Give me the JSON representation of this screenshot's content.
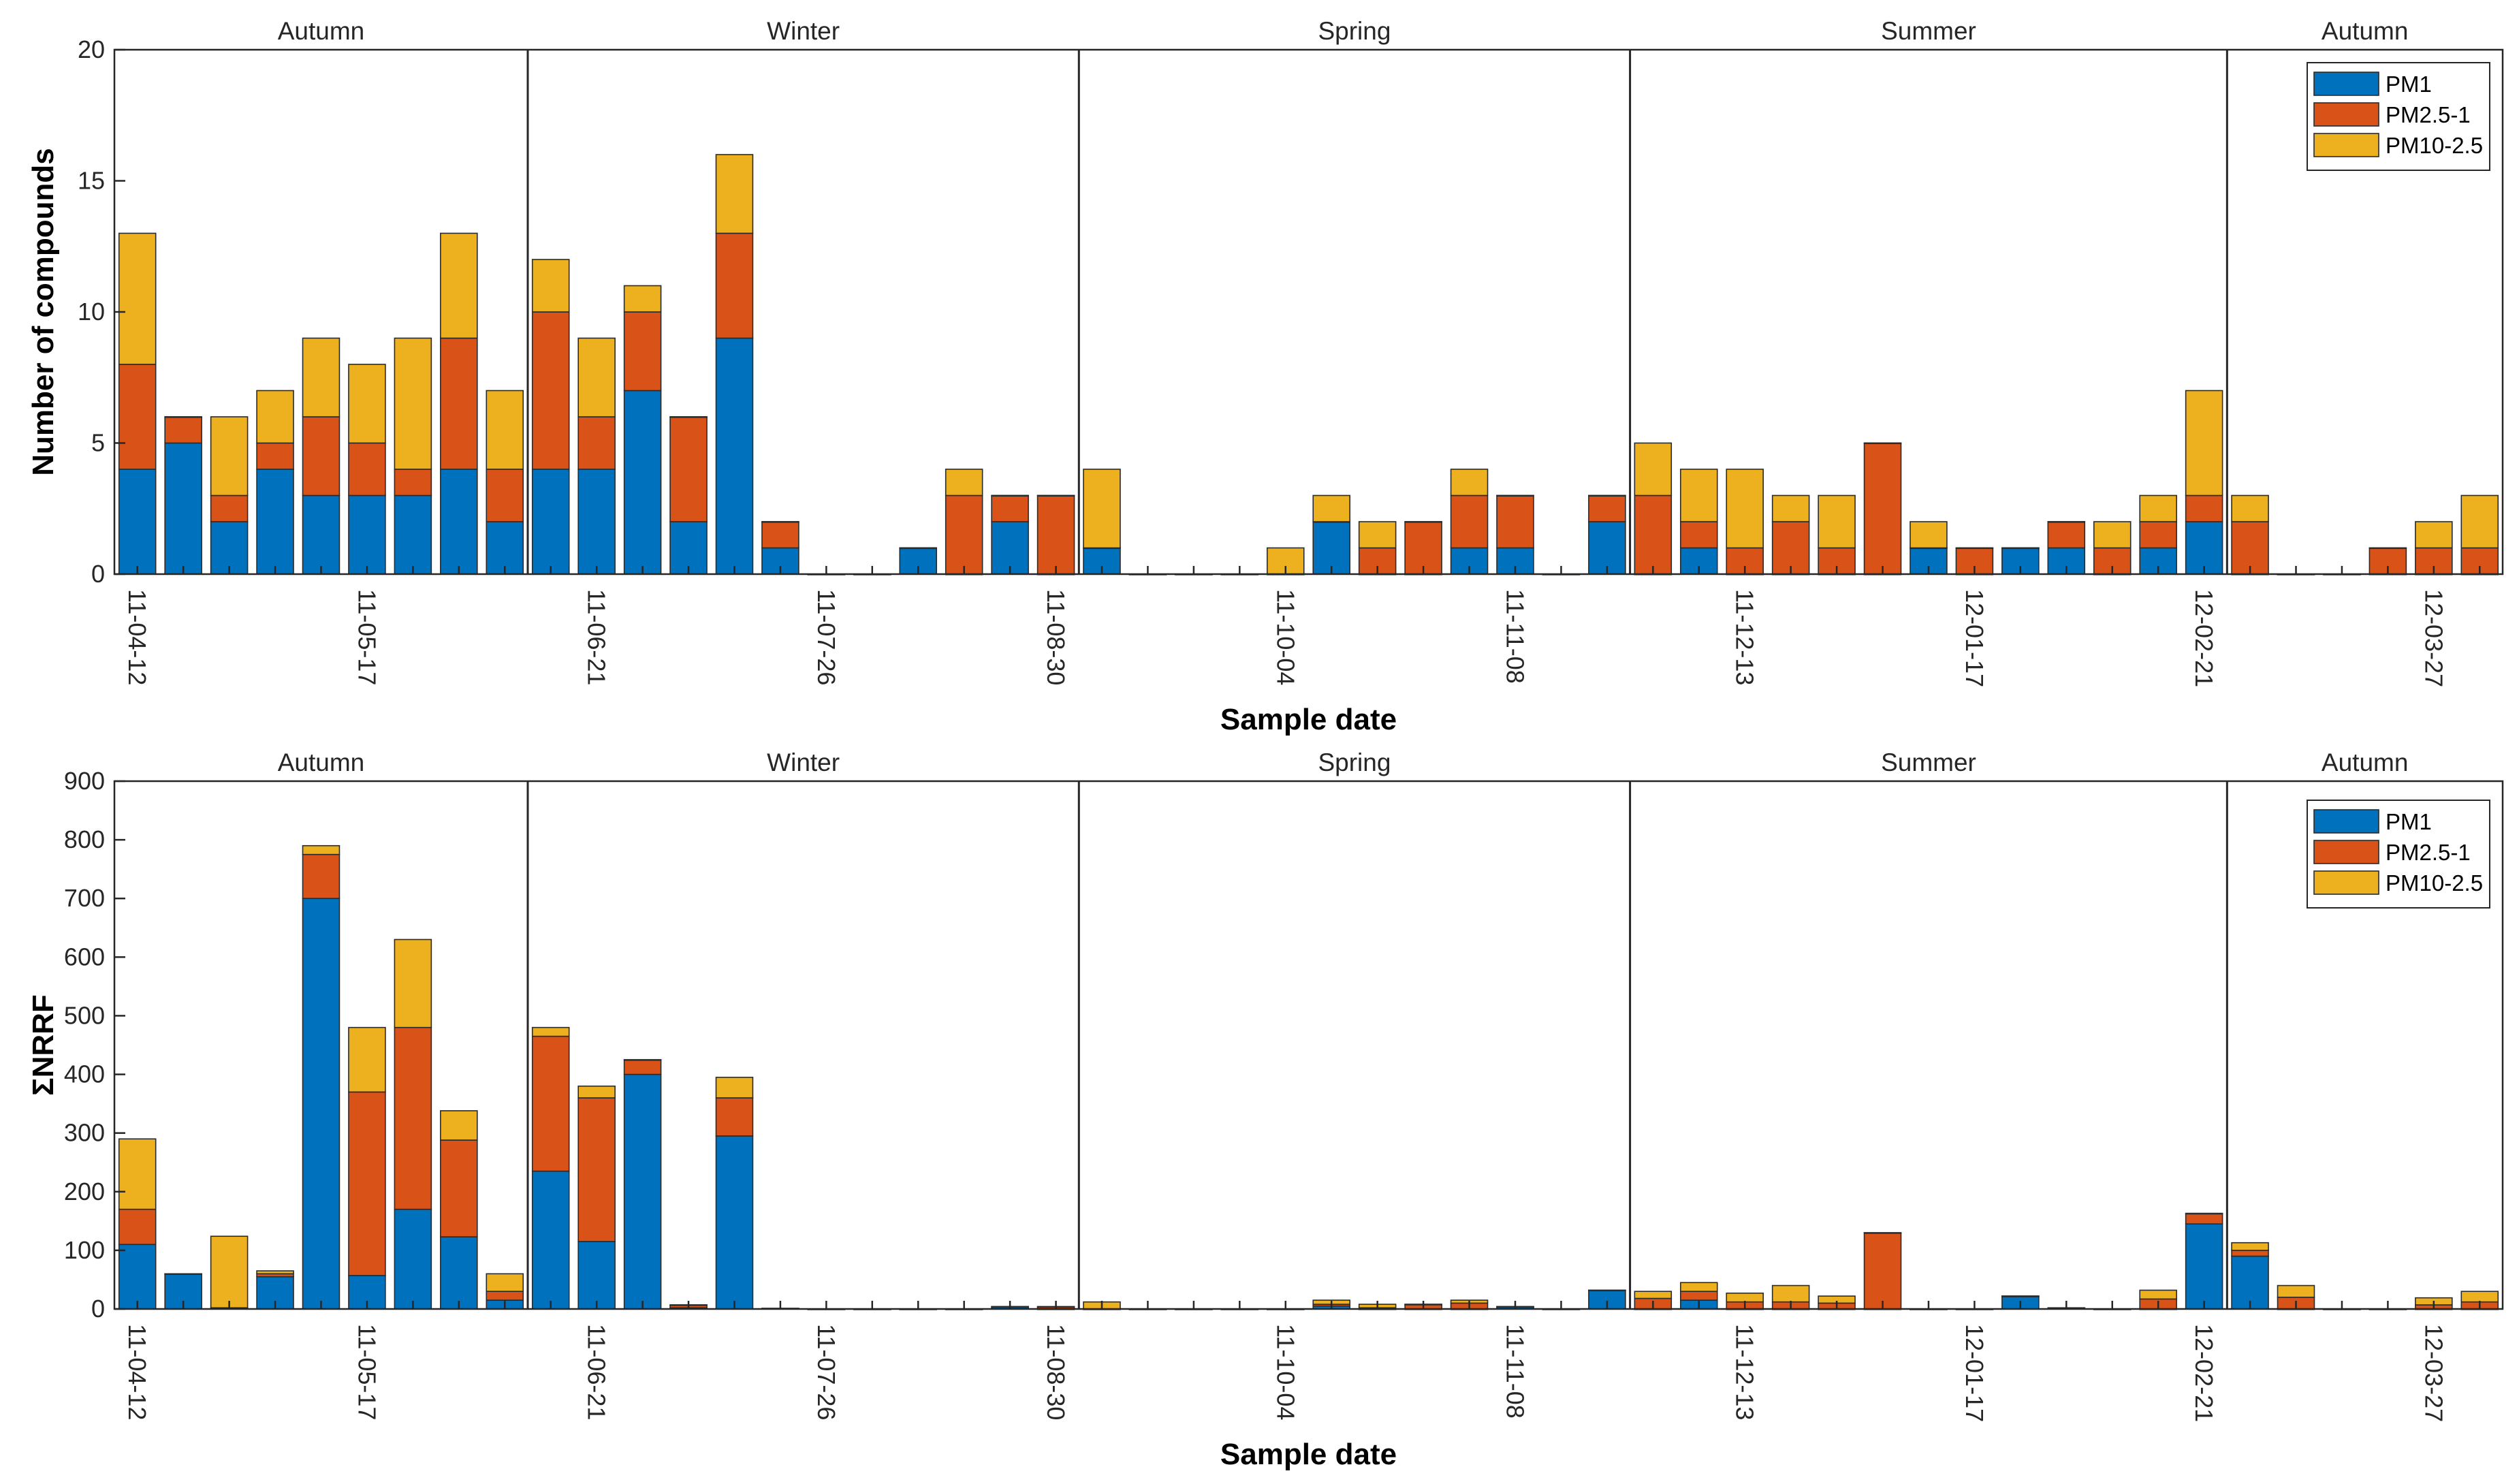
{
  "chart_data": [
    {
      "type": "bar",
      "stacked": true,
      "ylabel": "Number of compounds",
      "xlabel": "Sample date",
      "ylim": [
        0,
        20
      ],
      "yticks": [
        0,
        5,
        10,
        15,
        20
      ],
      "xtick_labels": [
        {
          "index": 0,
          "label": "11-04-12"
        },
        {
          "index": 5,
          "label": "11-05-17"
        },
        {
          "index": 10,
          "label": "11-06-21"
        },
        {
          "index": 15,
          "label": "11-07-26"
        },
        {
          "index": 20,
          "label": "11-08-30"
        },
        {
          "index": 25,
          "label": "11-10-04"
        },
        {
          "index": 30,
          "label": "11-11-08"
        },
        {
          "index": 35,
          "label": "11-12-13"
        },
        {
          "index": 40,
          "label": "12-01-17"
        },
        {
          "index": 45,
          "label": "12-02-21"
        },
        {
          "index": 50,
          "label": "12-03-27"
        }
      ],
      "seasons": [
        {
          "label": "Autumn",
          "start": -0.5,
          "end": 8.5
        },
        {
          "label": "Winter",
          "start": 8.5,
          "end": 20.5
        },
        {
          "label": "Spring",
          "start": 20.5,
          "end": 32.5
        },
        {
          "label": "Summer",
          "start": 32.5,
          "end": 45.5
        },
        {
          "label": "Autumn",
          "start": 45.5,
          "end": 51.5
        }
      ],
      "legend_position": "top-right",
      "series": [
        {
          "name": "PM1",
          "color": "#0072BD",
          "values": [
            4,
            5,
            2,
            4,
            3,
            3,
            3,
            4,
            2,
            4,
            4,
            7,
            2,
            9,
            1,
            0,
            0,
            1,
            0,
            2,
            0,
            1,
            0,
            0,
            0,
            0,
            2,
            0,
            0,
            1,
            1,
            0,
            2,
            0,
            1,
            0,
            0,
            0,
            0,
            1,
            0,
            1,
            1,
            0,
            1,
            2,
            0,
            0,
            0,
            0,
            0,
            0
          ]
        },
        {
          "name": "PM2.5-1",
          "color": "#D95319",
          "values": [
            4,
            1,
            1,
            1,
            3,
            2,
            1,
            5,
            2,
            6,
            2,
            3,
            4,
            4,
            1,
            0,
            0,
            0,
            3,
            1,
            3,
            0,
            0,
            0,
            0,
            0,
            0,
            1,
            2,
            2,
            2,
            0,
            1,
            3,
            1,
            1,
            2,
            1,
            5,
            0,
            1,
            0,
            1,
            1,
            1,
            1,
            2,
            0,
            0,
            1,
            1,
            1
          ]
        },
        {
          "name": "PM10-2.5",
          "color": "#EDB120",
          "values": [
            5,
            0,
            3,
            2,
            3,
            3,
            5,
            4,
            3,
            2,
            3,
            1,
            0,
            3,
            0,
            0,
            0,
            0,
            1,
            0,
            0,
            3,
            0,
            0,
            0,
            1,
            1,
            1,
            0,
            1,
            0,
            0,
            0,
            2,
            2,
            3,
            1,
            2,
            0,
            1,
            0,
            0,
            0,
            1,
            1,
            4,
            1,
            0,
            0,
            0,
            1,
            2
          ]
        }
      ]
    },
    {
      "type": "bar",
      "stacked": true,
      "ylabel": "ΣNRRF",
      "xlabel": "Sample date",
      "ylim": [
        0,
        900
      ],
      "yticks": [
        0,
        100,
        200,
        300,
        400,
        500,
        600,
        700,
        800,
        900
      ],
      "xtick_labels": [
        {
          "index": 0,
          "label": "11-04-12"
        },
        {
          "index": 5,
          "label": "11-05-17"
        },
        {
          "index": 10,
          "label": "11-06-21"
        },
        {
          "index": 15,
          "label": "11-07-26"
        },
        {
          "index": 20,
          "label": "11-08-30"
        },
        {
          "index": 25,
          "label": "11-10-04"
        },
        {
          "index": 30,
          "label": "11-11-08"
        },
        {
          "index": 35,
          "label": "11-12-13"
        },
        {
          "index": 40,
          "label": "12-01-17"
        },
        {
          "index": 45,
          "label": "12-02-21"
        },
        {
          "index": 50,
          "label": "12-03-27"
        }
      ],
      "seasons": [
        {
          "label": "Autumn",
          "start": -0.5,
          "end": 8.5
        },
        {
          "label": "Winter",
          "start": 8.5,
          "end": 20.5
        },
        {
          "label": "Spring",
          "start": 20.5,
          "end": 32.5
        },
        {
          "label": "Summer",
          "start": 32.5,
          "end": 45.5
        },
        {
          "label": "Autumn",
          "start": 45.5,
          "end": 51.5
        }
      ],
      "legend_position": "top-right",
      "series": [
        {
          "name": "PM1",
          "color": "#0072BD",
          "values": [
            110,
            60,
            2,
            55,
            700,
            57,
            170,
            123,
            15,
            235,
            115,
            400,
            2,
            295,
            1,
            0,
            0,
            0,
            0,
            4,
            0,
            0,
            0,
            0,
            0,
            0,
            5,
            0,
            0,
            0,
            4,
            0,
            32,
            0,
            15,
            0,
            0,
            0,
            0,
            0,
            0,
            22,
            2,
            0,
            0,
            145,
            90,
            0,
            0,
            0,
            0,
            0
          ]
        },
        {
          "name": "PM2.5-1",
          "color": "#D95319",
          "values": [
            60,
            0,
            0,
            5,
            75,
            313,
            310,
            165,
            15,
            230,
            245,
            25,
            5,
            65,
            0,
            0,
            0,
            0,
            0,
            0,
            4,
            0,
            0,
            0,
            0,
            0,
            3,
            2,
            8,
            10,
            0,
            0,
            0,
            18,
            15,
            12,
            12,
            10,
            130,
            0,
            0,
            0,
            0,
            0,
            17,
            18,
            10,
            20,
            0,
            0,
            7,
            12
          ]
        },
        {
          "name": "PM10-2.5",
          "color": "#EDB120",
          "values": [
            120,
            0,
            122,
            5,
            15,
            110,
            150,
            50,
            30,
            15,
            20,
            0,
            0,
            35,
            0,
            0,
            0,
            0,
            0,
            0,
            0,
            12,
            0,
            0,
            0,
            0,
            7,
            6,
            0,
            5,
            0,
            0,
            0,
            12,
            15,
            15,
            28,
            12,
            0,
            0,
            0,
            0,
            0,
            0,
            15,
            0,
            13,
            20,
            0,
            0,
            12,
            18
          ]
        }
      ]
    }
  ]
}
